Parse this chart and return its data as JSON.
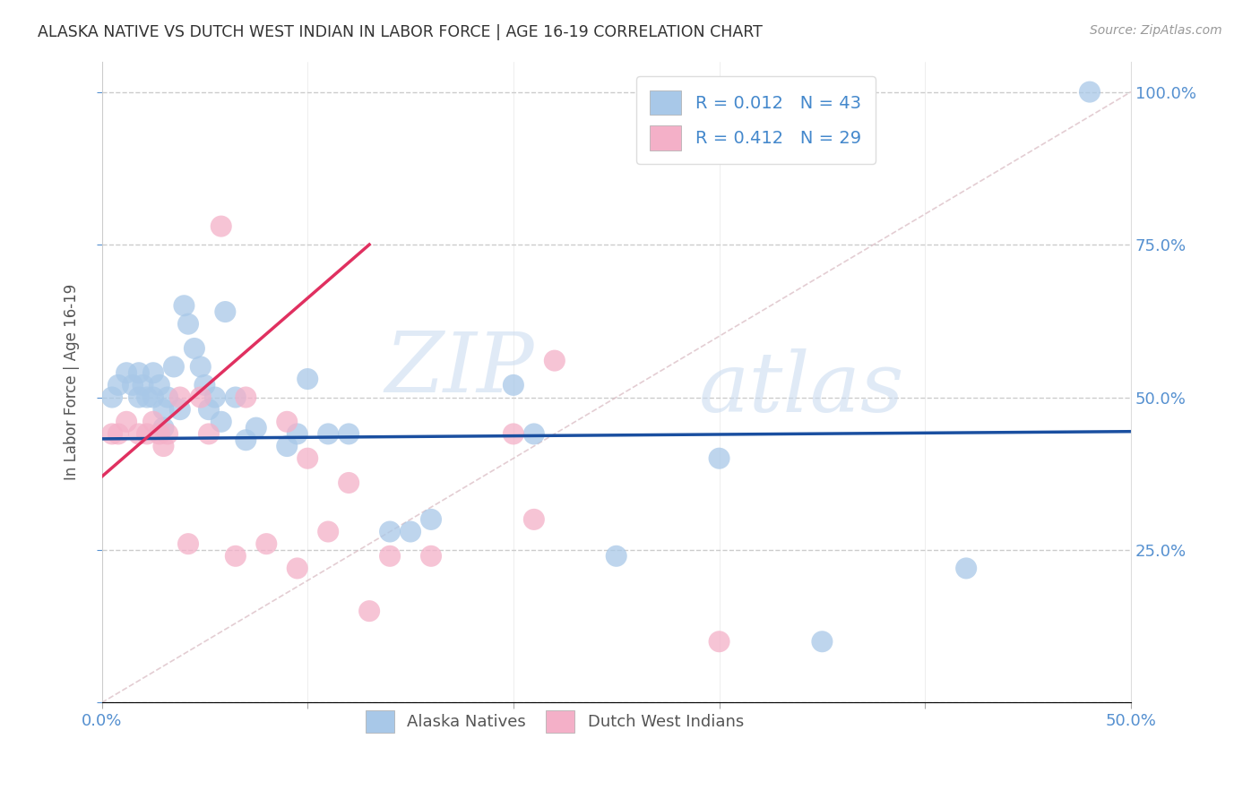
{
  "title": "ALASKA NATIVE VS DUTCH WEST INDIAN IN LABOR FORCE | AGE 16-19 CORRELATION CHART",
  "source": "Source: ZipAtlas.com",
  "ylabel": "In Labor Force | Age 16-19",
  "xlim": [
    0.0,
    0.5
  ],
  "ylim": [
    0.0,
    1.05
  ],
  "alaska_R": 0.012,
  "alaska_N": 43,
  "dutch_R": 0.412,
  "dutch_N": 29,
  "alaska_color": "#a8c8e8",
  "dutch_color": "#f4b0c8",
  "alaska_line_color": "#1a4fa0",
  "dutch_line_color": "#e03060",
  "ref_line_color": "#e0b0c0",
  "alaska_scatter_x": [
    0.005,
    0.008,
    0.012,
    0.015,
    0.018,
    0.018,
    0.02,
    0.022,
    0.025,
    0.025,
    0.028,
    0.03,
    0.03,
    0.032,
    0.035,
    0.038,
    0.04,
    0.042,
    0.045,
    0.048,
    0.05,
    0.052,
    0.055,
    0.058,
    0.06,
    0.065,
    0.07,
    0.075,
    0.09,
    0.095,
    0.1,
    0.11,
    0.12,
    0.14,
    0.15,
    0.16,
    0.2,
    0.21,
    0.25,
    0.3,
    0.35,
    0.42,
    0.48
  ],
  "alaska_scatter_y": [
    0.5,
    0.52,
    0.54,
    0.52,
    0.5,
    0.54,
    0.52,
    0.5,
    0.5,
    0.54,
    0.52,
    0.48,
    0.45,
    0.5,
    0.55,
    0.48,
    0.65,
    0.62,
    0.58,
    0.55,
    0.52,
    0.48,
    0.5,
    0.46,
    0.64,
    0.5,
    0.43,
    0.45,
    0.42,
    0.44,
    0.53,
    0.44,
    0.44,
    0.28,
    0.28,
    0.3,
    0.52,
    0.44,
    0.24,
    0.4,
    0.1,
    0.22,
    1.0
  ],
  "dutch_scatter_x": [
    0.005,
    0.008,
    0.012,
    0.018,
    0.022,
    0.025,
    0.028,
    0.03,
    0.032,
    0.038,
    0.042,
    0.048,
    0.052,
    0.058,
    0.065,
    0.07,
    0.08,
    0.09,
    0.095,
    0.1,
    0.11,
    0.12,
    0.13,
    0.14,
    0.16,
    0.2,
    0.21,
    0.22,
    0.3
  ],
  "dutch_scatter_y": [
    0.44,
    0.44,
    0.46,
    0.44,
    0.44,
    0.46,
    0.44,
    0.42,
    0.44,
    0.5,
    0.26,
    0.5,
    0.44,
    0.78,
    0.24,
    0.5,
    0.26,
    0.46,
    0.22,
    0.4,
    0.28,
    0.36,
    0.15,
    0.24,
    0.24,
    0.44,
    0.3,
    0.56,
    0.1
  ],
  "watermark_zip": "ZIP",
  "watermark_atlas": "atlas",
  "alaska_line_x": [
    0.0,
    0.5
  ],
  "alaska_line_y": [
    0.432,
    0.444
  ],
  "dutch_line_x": [
    0.0,
    0.13
  ],
  "dutch_line_y": [
    0.37,
    0.75
  ],
  "ref_line_x": [
    0.0,
    0.5
  ],
  "ref_line_y": [
    0.0,
    1.0
  ]
}
